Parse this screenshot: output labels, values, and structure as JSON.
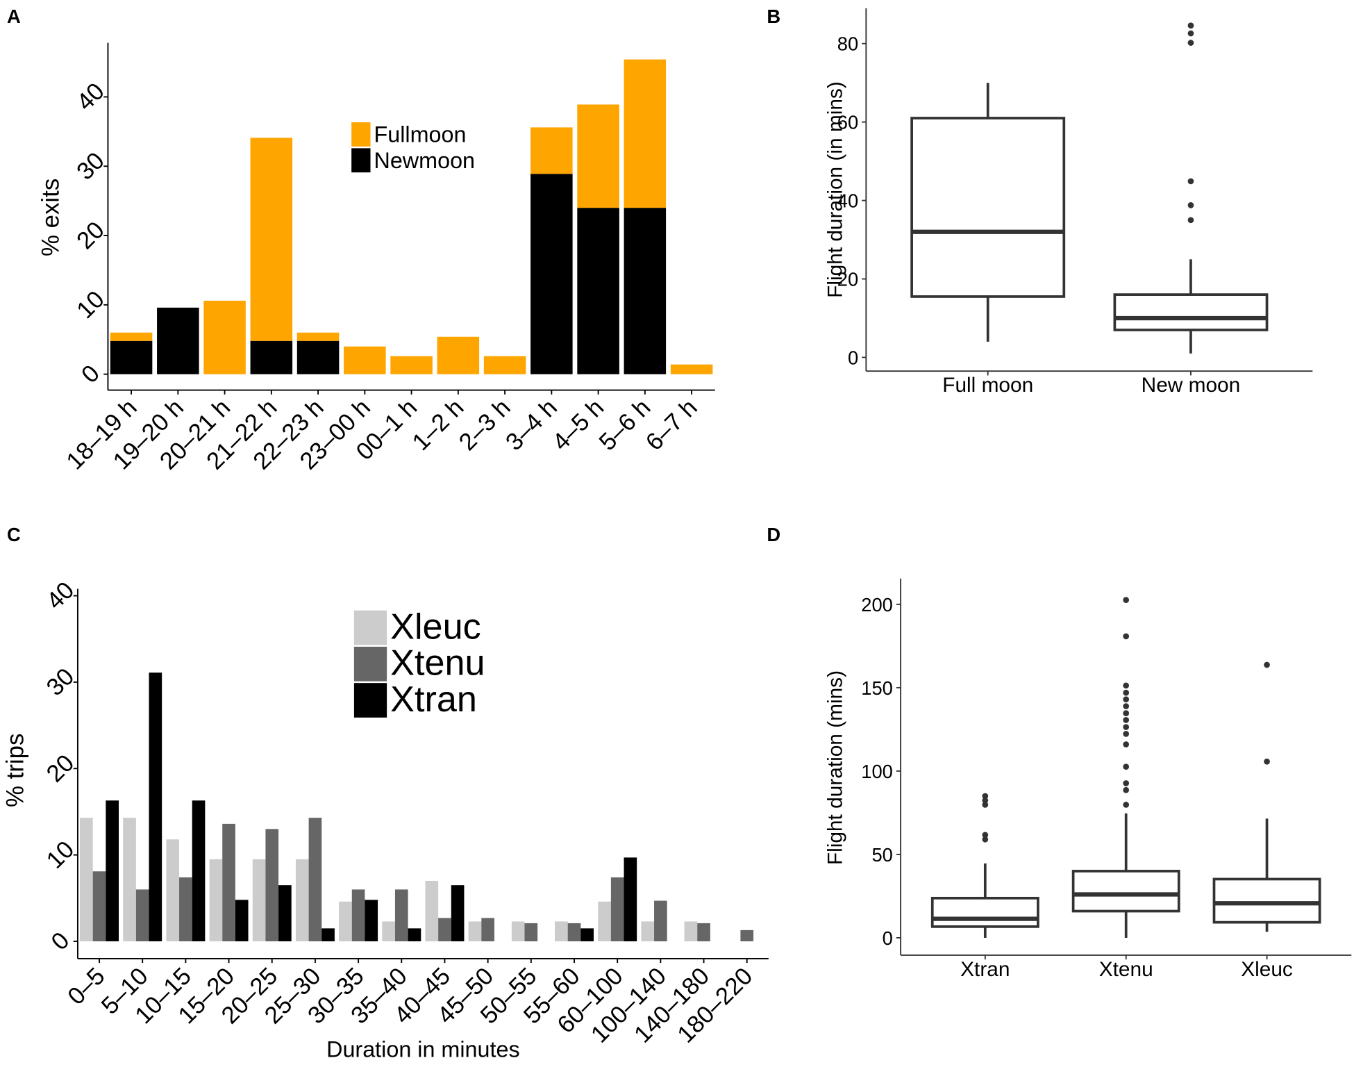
{
  "chart_data": [
    {
      "panel": "A",
      "type": "stacked_bar",
      "ylabel": "% exits",
      "categories": [
        "18–19 h",
        "19–20 h",
        "20–21 h",
        "21–22 h",
        "22–23 h",
        "23–00 h",
        "00–1 h",
        "1–2 h",
        "2–3 h",
        "3–4 h",
        "4–5 h",
        "5–6 h",
        "6–7 h"
      ],
      "series": [
        {
          "name": "Fullmoon",
          "color": "#FFA500",
          "values": [
            1.2,
            0,
            10.6,
            29.3,
            1.2,
            4.0,
            2.6,
            5.4,
            2.6,
            6.7,
            14.9,
            21.4,
            1.4
          ]
        },
        {
          "name": "Newmoon",
          "color": "#000000",
          "values": [
            4.8,
            9.6,
            0,
            4.8,
            4.8,
            0,
            0,
            0,
            0,
            28.9,
            24.0,
            24.0,
            0
          ]
        }
      ],
      "ylim": [
        -2.3,
        47.8
      ],
      "yticks": [
        0,
        10,
        20,
        30,
        40
      ],
      "legend": "top-center"
    },
    {
      "panel": "B",
      "type": "box",
      "ylabel": "Flight duration (in mins)",
      "categories": [
        "Full moon",
        "New moon"
      ],
      "color": "#333333",
      "boxes": [
        {
          "whisker_low": 4,
          "q1": 15.5,
          "median": 32,
          "q3": 61,
          "whisker_high": 70,
          "outliers": []
        },
        {
          "whisker_low": 1,
          "q1": 7,
          "median": 10,
          "q3": 16,
          "whisker_high": 25,
          "outliers": [
            35,
            38.8,
            44.9,
            80.2,
            82.6,
            84.6
          ]
        }
      ],
      "ylim": [
        -3.5,
        89
      ],
      "yticks": [
        0,
        20,
        40,
        60,
        80
      ]
    },
    {
      "panel": "C",
      "type": "grouped_bar",
      "ylabel": "% trips",
      "xlabel": "Duration in minutes",
      "categories": [
        "0–5",
        "5–10",
        "10–15",
        "15–20",
        "20–25",
        "25–30",
        "30–35",
        "35–40",
        "40–45",
        "45–50",
        "50–55",
        "55–60",
        "60–100",
        "100–140",
        "140–180",
        "180–220"
      ],
      "series": [
        {
          "name": "Xleuc",
          "color": "#CCCCCC",
          "values": [
            14.3,
            14.3,
            11.8,
            9.5,
            9.5,
            9.5,
            4.6,
            2.3,
            7.0,
            2.3,
            2.3,
            2.3,
            4.6,
            2.3,
            2.3,
            0
          ]
        },
        {
          "name": "Xtenu",
          "color": "#666666",
          "values": [
            8.1,
            6.0,
            7.4,
            13.6,
            13.0,
            14.3,
            6.0,
            6.0,
            2.7,
            2.7,
            2.1,
            2.1,
            7.4,
            4.7,
            2.1,
            1.3
          ]
        },
        {
          "name": "Xtran",
          "color": "#000000",
          "values": [
            16.3,
            31.1,
            16.3,
            4.8,
            6.5,
            1.5,
            4.8,
            1.5,
            6.5,
            0,
            0,
            1.5,
            9.7,
            0,
            0,
            0
          ]
        }
      ],
      "ylim": [
        -2,
        40.8
      ],
      "yticks": [
        0,
        10,
        20,
        30,
        40
      ],
      "legend": "top-center"
    },
    {
      "panel": "D",
      "type": "box",
      "ylabel": "Flight duration (mins)",
      "categories": [
        "Xtran",
        "Xtenu",
        "Xleuc"
      ],
      "color": "#333333",
      "boxes": [
        {
          "whisker_low": 0,
          "q1": 6.7,
          "median": 11.4,
          "q3": 23.8,
          "whisker_high": 44.6,
          "outliers": [
            59,
            61.7,
            79.8,
            82.4,
            85
          ]
        },
        {
          "whisker_low": 0,
          "q1": 16,
          "median": 26,
          "q3": 40,
          "whisker_high": 74.6,
          "outliers": [
            79.8,
            88.6,
            92.7,
            102.6,
            116,
            122.3,
            126.4,
            130.6,
            134.7,
            138.9,
            143,
            147,
            151.3,
            180.8,
            202.6
          ]
        },
        {
          "whisker_low": 3.6,
          "q1": 9.3,
          "median": 20.7,
          "q3": 35.2,
          "whisker_high": 71.5,
          "outliers": [
            105.7,
            163.7
          ]
        }
      ],
      "ylim": [
        -10.4,
        215.5
      ],
      "yticks": [
        0,
        50,
        100,
        150,
        200
      ]
    }
  ]
}
